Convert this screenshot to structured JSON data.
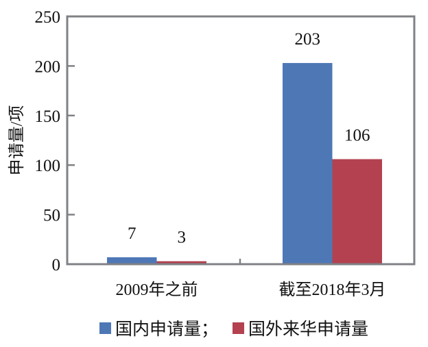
{
  "chart_data": {
    "type": "bar",
    "title": "",
    "xlabel": "",
    "ylabel": "申请量/项",
    "ylim": [
      0,
      250
    ],
    "yticks": [
      0,
      50,
      100,
      150,
      200,
      250
    ],
    "grid": false,
    "legend_position": "bottom",
    "categories": [
      "2009年之前",
      "截至2018年3月"
    ],
    "series": [
      {
        "name": "国内申请量；",
        "color": "#4e77b6",
        "values": [
          7,
          203
        ]
      },
      {
        "name": "国外来华申请量",
        "color": "#b3414f",
        "values": [
          3,
          106
        ]
      }
    ],
    "data_labels": true
  }
}
